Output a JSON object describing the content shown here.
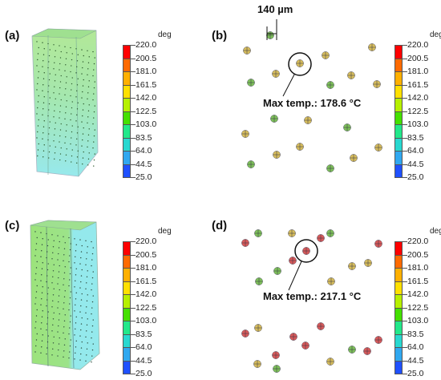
{
  "panels": {
    "a": {
      "label": "(a)"
    },
    "b": {
      "label": "(b)",
      "scale_label": "140 µm",
      "annotation": "Max temp.: 178.6 °C"
    },
    "c": {
      "label": "(c)"
    },
    "d": {
      "label": "(d)",
      "annotation": "Max temp.: 217.1 °C"
    }
  },
  "colorbar": {
    "unit": "deg",
    "ticks": [
      "220.0",
      "200.5",
      "181.0",
      "161.5",
      "142.0",
      "122.5",
      "103.0",
      "83.5",
      "64.0",
      "44.5",
      "25.0"
    ],
    "colors": [
      "#ff0000",
      "#ff6a00",
      "#ffb000",
      "#ffe000",
      "#b6f000",
      "#44e000",
      "#22e88a",
      "#28d8d0",
      "#30a8f0",
      "#1f50ff"
    ]
  },
  "colors": {
    "prism_green": "#8de49a",
    "prism_cyan": "#86e6ea",
    "sphere_green": "#7ec05a",
    "sphere_yellow": "#d6bc5c",
    "sphere_red": "#d75a5a"
  }
}
